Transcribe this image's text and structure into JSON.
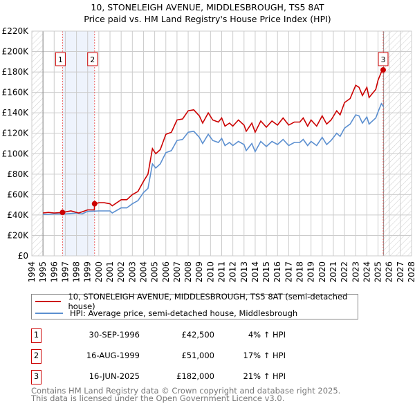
{
  "chart_data": {
    "type": "line",
    "title": "10, STONELEIGH AVENUE, MIDDLESBROUGH, TS5 8AT",
    "subtitle": "Price paid vs. HM Land Registry's House Price Index (HPI)",
    "xlim": [
      1994,
      2028
    ],
    "ylim": [
      0,
      220000
    ],
    "x_ticks": [
      "1994",
      "1995",
      "1996",
      "1997",
      "1998",
      "1999",
      "2000",
      "2001",
      "2002",
      "2003",
      "2004",
      "2005",
      "2006",
      "2007",
      "2008",
      "2009",
      "2010",
      "2011",
      "2012",
      "2013",
      "2014",
      "2015",
      "2016",
      "2017",
      "2018",
      "2019",
      "2020",
      "2021",
      "2022",
      "2023",
      "2024",
      "2025",
      "2026",
      "2027",
      "2028"
    ],
    "y_ticks": [
      {
        "value": 0,
        "label": "£0"
      },
      {
        "value": 20000,
        "label": "£20K"
      },
      {
        "value": 40000,
        "label": "£40K"
      },
      {
        "value": 60000,
        "label": "£60K"
      },
      {
        "value": 80000,
        "label": "£80K"
      },
      {
        "value": 100000,
        "label": "£100K"
      },
      {
        "value": 120000,
        "label": "£120K"
      },
      {
        "value": 140000,
        "label": "£140K"
      },
      {
        "value": 160000,
        "label": "£160K"
      },
      {
        "value": 180000,
        "label": "£180K"
      },
      {
        "value": 200000,
        "label": "£200K"
      },
      {
        "value": 220000,
        "label": "£220K"
      }
    ],
    "grid": true,
    "hatched_ranges": [
      [
        1994,
        1995
      ],
      [
        2025.5,
        2028
      ]
    ],
    "shaded_range": [
      1996.75,
      1999.62
    ],
    "series": [
      {
        "name": "10, STONELEIGH AVENUE, MIDDLESBROUGH, TS5 8AT (semi-detached house)",
        "color": "#cc0000",
        "x": [
          1995,
          1995.5,
          1996,
          1996.75,
          1997.5,
          1998.2,
          1999,
          1999.6,
          1999.62,
          2000,
          2000.5,
          2001,
          2001.2,
          2002,
          2002.5,
          2003,
          2003.5,
          2004,
          2004.4,
          2004.8,
          2005.1,
          2005.5,
          2006,
          2006.5,
          2007,
          2007.5,
          2008,
          2008.5,
          2009,
          2009.3,
          2009.8,
          2010.2,
          2010.7,
          2011,
          2011.3,
          2011.7,
          2012,
          2012.5,
          2013,
          2013.2,
          2013.7,
          2014,
          2014.5,
          2015,
          2015.5,
          2016,
          2016.5,
          2017,
          2017.5,
          2018,
          2018.3,
          2018.7,
          2019,
          2019.5,
          2020,
          2020.4,
          2020.8,
          2021.3,
          2021.6,
          2022,
          2022.5,
          2023,
          2023.3,
          2023.6,
          2024,
          2024.2,
          2024.8,
          2025,
          2025.3,
          2025.46
        ],
        "y": [
          42000,
          42500,
          42000,
          42500,
          44000,
          42000,
          45000,
          45000,
          51000,
          52000,
          52000,
          51000,
          49000,
          55000,
          55000,
          60000,
          63000,
          73000,
          80000,
          105000,
          100000,
          104000,
          119000,
          121000,
          133000,
          134000,
          142000,
          143000,
          137000,
          130000,
          140000,
          133000,
          131000,
          135000,
          127000,
          130000,
          127000,
          133000,
          128000,
          122000,
          130000,
          121000,
          132000,
          126000,
          132000,
          128000,
          135000,
          128000,
          131000,
          131000,
          135000,
          127000,
          133000,
          127000,
          137000,
          129000,
          133000,
          142000,
          138000,
          150000,
          154000,
          167000,
          165000,
          157000,
          165000,
          155000,
          163000,
          172000,
          180000,
          182000
        ]
      },
      {
        "name": "HPI: Average price, semi-detached house, Middlesbrough",
        "color": "#5b8fd0",
        "x": [
          1995,
          1996,
          1997,
          1998,
          1998.5,
          1999,
          2000,
          2001,
          2001.2,
          2002,
          2002.5,
          2003,
          2003.5,
          2004,
          2004.4,
          2004.8,
          2005.1,
          2005.5,
          2006,
          2006.5,
          2007,
          2007.5,
          2008,
          2008.5,
          2009,
          2009.3,
          2009.8,
          2010.2,
          2010.7,
          2011,
          2011.3,
          2011.7,
          2012,
          2012.5,
          2013,
          2013.2,
          2013.7,
          2014,
          2014.5,
          2015,
          2015.5,
          2016,
          2016.5,
          2017,
          2017.5,
          2018,
          2018.3,
          2018.7,
          2019,
          2019.5,
          2020,
          2020.4,
          2020.8,
          2021.3,
          2021.6,
          2022,
          2022.5,
          2023,
          2023.3,
          2023.6,
          2024,
          2024.2,
          2024.8,
          2025,
          2025.3,
          2025.5
        ],
        "y": [
          40500,
          41000,
          41000,
          42000,
          41000,
          43500,
          44000,
          44000,
          42000,
          47000,
          47000,
          51000,
          54000,
          62000,
          66000,
          90000,
          86000,
          90000,
          101000,
          103000,
          113000,
          114000,
          121000,
          122000,
          116000,
          110000,
          119000,
          113000,
          111000,
          115000,
          108000,
          111000,
          108000,
          112000,
          109000,
          103000,
          110000,
          102000,
          112000,
          107000,
          112000,
          109000,
          114000,
          108000,
          111000,
          111000,
          114000,
          108000,
          112000,
          108000,
          116000,
          109000,
          113000,
          120000,
          117000,
          125000,
          129000,
          138000,
          137000,
          130000,
          136000,
          129000,
          135000,
          141000,
          149000,
          146000
        ]
      }
    ],
    "sales": [
      {
        "label": "1",
        "x": 1996.75,
        "price": 42500,
        "date": "30-SEP-1996",
        "price_label": "£42,500",
        "hpi": "4% ↑ HPI"
      },
      {
        "label": "2",
        "x": 1999.62,
        "price": 51000,
        "date": "16-AUG-1999",
        "price_label": "£51,000",
        "hpi": "17% ↑ HPI"
      },
      {
        "label": "3",
        "x": 2025.46,
        "price": 182000,
        "date": "16-JUN-2025",
        "price_label": "£182,000",
        "hpi": "21% ↑ HPI"
      }
    ],
    "legend": "below"
  },
  "legend": {
    "property": "10, STONELEIGH AVENUE, MIDDLESBROUGH, TS5 8AT (semi-detached house)",
    "hpi": "HPI: Average price, semi-detached house, Middlesbrough"
  },
  "footer": {
    "line1": "Contains HM Land Registry data © Crown copyright and database right 2025.",
    "line2": "This data is licensed under the Open Government Licence v3.0."
  }
}
